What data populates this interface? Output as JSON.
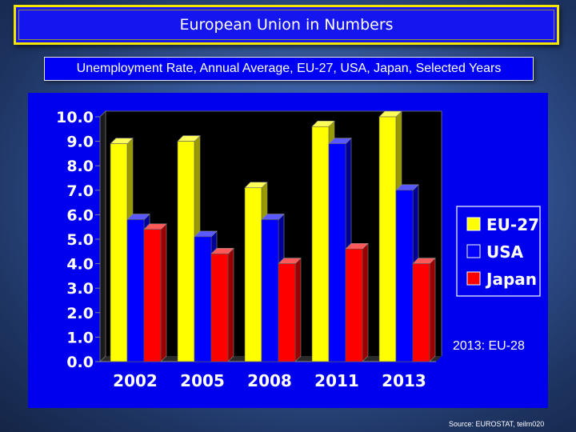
{
  "header": {
    "title": "European Union in Numbers",
    "subtitle": "Unemployment Rate, Annual Average, EU-27, USA, Japan, Selected Years"
  },
  "note": "2013: EU-28",
  "source": "Source: EUROSTAT, teilm020",
  "chart_data": {
    "type": "bar",
    "title": "Unemployment Rate, Annual Average, EU-27, USA, Japan, Selected Years",
    "xlabel": "",
    "ylabel": "",
    "categories": [
      "2002",
      "2005",
      "2008",
      "2011",
      "2013"
    ],
    "ylim": [
      0,
      10
    ],
    "yticks": [
      "0.0",
      "1.0",
      "2.0",
      "3.0",
      "4.0",
      "5.0",
      "6.0",
      "7.0",
      "8.0",
      "9.0",
      "10.0"
    ],
    "grid": false,
    "legend_position": "right",
    "plot_background": "#000000",
    "series": [
      {
        "name": "EU-27",
        "color": "#ffff00",
        "values": [
          8.9,
          9.0,
          7.1,
          9.6,
          10.0
        ]
      },
      {
        "name": "USA",
        "color": "#0000ff",
        "values": [
          5.8,
          5.1,
          5.8,
          8.9,
          7.0
        ]
      },
      {
        "name": "Japan",
        "color": "#ff0000",
        "values": [
          5.4,
          4.4,
          4.0,
          4.6,
          4.0
        ]
      }
    ]
  }
}
